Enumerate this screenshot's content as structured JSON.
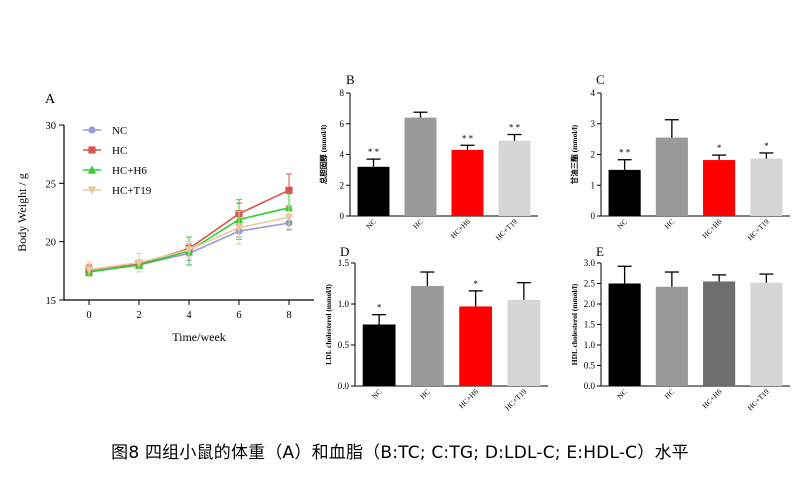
{
  "caption": "图8  四组小鼠的体重（A）和血脂（B:TC; C:TG; D:LDL-C; E:HDL-C）水平",
  "chart_data": [
    {
      "id": "A",
      "panel_label": "A",
      "type": "line",
      "xlabel": "Time/week",
      "ylabel": "Body Weight / g",
      "x": [
        0,
        2,
        4,
        6,
        8
      ],
      "xticks": [
        "0",
        "2",
        "4",
        "6",
        "8"
      ],
      "yticks": [
        "15",
        "20",
        "25",
        "30"
      ],
      "ylim": [
        15,
        30
      ],
      "xlim": [
        -1,
        9
      ],
      "series": [
        {
          "name": "NC",
          "color": "#9999dd",
          "marker": "circle",
          "values": [
            17.5,
            18.0,
            19.0,
            20.9,
            21.6
          ],
          "errors": [
            0.4,
            0.3,
            0.6,
            0.5,
            0.6
          ]
        },
        {
          "name": "HC",
          "color": "#d9534f",
          "marker": "square",
          "values": [
            17.6,
            18.1,
            19.4,
            22.4,
            24.4
          ],
          "errors": [
            0.4,
            0.3,
            0.4,
            0.9,
            1.4
          ]
        },
        {
          "name": "HC+H6",
          "color": "#33cc33",
          "marker": "triangle-up",
          "values": [
            17.4,
            18.0,
            19.2,
            21.9,
            22.9
          ],
          "errors": [
            0.3,
            0.3,
            1.2,
            1.7,
            1.2
          ]
        },
        {
          "name": "HC+T19",
          "color": "#e8c9a0",
          "marker": "triangle-down",
          "values": [
            17.6,
            18.2,
            19.3,
            21.2,
            22.1
          ],
          "errors": [
            0.6,
            0.8,
            0.7,
            1.4,
            1.0
          ]
        }
      ]
    },
    {
      "id": "B",
      "panel_label": "B",
      "type": "bar",
      "ylabel": "总胆固醇 (mmol/l)",
      "categories": [
        "NC",
        "HC",
        "HC+H6",
        "HC+T19"
      ],
      "values": [
        3.2,
        6.4,
        4.3,
        4.9
      ],
      "errors": [
        0.5,
        0.35,
        0.3,
        0.4
      ],
      "significance": [
        "* *",
        "",
        "* *",
        "* *"
      ],
      "colors": [
        "#000000",
        "#9a9a9a",
        "#ff0000",
        "#d6d6d6"
      ],
      "ylim": [
        0,
        8
      ],
      "yticks": [
        "0",
        "2",
        "4",
        "6",
        "8"
      ]
    },
    {
      "id": "C",
      "panel_label": "C",
      "type": "bar",
      "ylabel": "甘油三酯 (mmol/l)",
      "categories": [
        "NC",
        "HC",
        "HC+H6",
        "HC+T19"
      ],
      "values": [
        1.5,
        2.55,
        1.82,
        1.87
      ],
      "errors": [
        0.33,
        0.58,
        0.16,
        0.18
      ],
      "significance": [
        "* *",
        "",
        "*",
        "*"
      ],
      "colors": [
        "#000000",
        "#9a9a9a",
        "#ff0000",
        "#d6d6d6"
      ],
      "ylim": [
        0,
        4
      ],
      "yticks": [
        "0",
        "1",
        "2",
        "3",
        "4"
      ]
    },
    {
      "id": "D",
      "panel_label": "D",
      "type": "bar",
      "ylabel": "LDL cholesterol (mmol/l)",
      "categories": [
        "NC",
        "HC",
        "HC+H6",
        "HC+T19"
      ],
      "values": [
        0.75,
        1.22,
        0.97,
        1.05
      ],
      "errors": [
        0.12,
        0.17,
        0.19,
        0.21
      ],
      "significance": [
        "*",
        "",
        "*",
        ""
      ],
      "colors": [
        "#000000",
        "#9a9a9a",
        "#ff0000",
        "#d6d6d6"
      ],
      "ylim": [
        0,
        1.5
      ],
      "yticks": [
        "0.0",
        "0.5",
        "1.0",
        "1.5"
      ]
    },
    {
      "id": "E",
      "panel_label": "E",
      "type": "bar",
      "ylabel": "HDL cholesterol (mmol/l)",
      "categories": [
        "NC",
        "HC",
        "HC+H6",
        "HC+T19"
      ],
      "values": [
        2.5,
        2.42,
        2.55,
        2.52
      ],
      "errors": [
        0.42,
        0.36,
        0.16,
        0.21
      ],
      "significance": [
        "",
        "",
        "",
        ""
      ],
      "colors": [
        "#000000",
        "#9a9a9a",
        "#6e6e6e",
        "#d6d6d6"
      ],
      "ylim": [
        0,
        3.0
      ],
      "yticks": [
        "0.0",
        "0.5",
        "1.0",
        "1.5",
        "2.0",
        "2.5",
        "3.0"
      ]
    }
  ]
}
